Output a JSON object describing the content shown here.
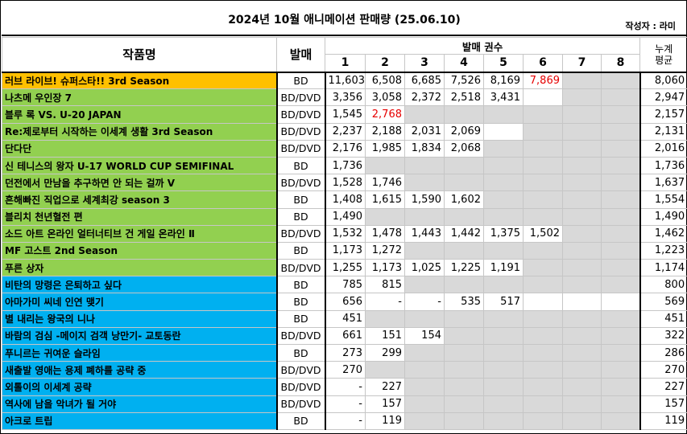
{
  "title": "2024년 10월 애니메이션 판매량 (25.06.10)",
  "author": "작성자 : 라미",
  "headers": {
    "title_col": "작품명",
    "type_col": "발매",
    "volumes_group": "발매 권수",
    "volumes": [
      "1",
      "2",
      "3",
      "4",
      "5",
      "6",
      "7",
      "8"
    ],
    "avg_col_line1": "누계",
    "avg_col_line2": "평균"
  },
  "group_colors": {
    "orange": "#ffc000",
    "green": "#92d050",
    "blue": "#00b0f0",
    "empty": "#d9d9d9",
    "highlight": "#e60000"
  },
  "rows": [
    {
      "name": "러브 라이브! 슈퍼스타!! 3rd Season",
      "type": "BD",
      "group": "orange",
      "vols": [
        "11,603",
        "6,508",
        "6,685",
        "7,526",
        "8,169",
        "7,869",
        "",
        ""
      ],
      "filled": 6,
      "red": [
        5
      ],
      "avg": "8,060"
    },
    {
      "name": "나츠메 우인장 7",
      "type": "BD/DVD",
      "group": "green",
      "vols": [
        "3,356",
        "3,058",
        "2,372",
        "2,518",
        "3,431",
        "",
        "",
        ""
      ],
      "filled": 6,
      "red": [],
      "avg": "2,947"
    },
    {
      "name": "블루 록 VS. U-20 JAPAN",
      "type": "BD/DVD",
      "group": "green",
      "vols": [
        "1,545",
        "2,768",
        "",
        "",
        "",
        "",
        "",
        ""
      ],
      "filled": 2,
      "red": [
        1
      ],
      "avg": "2,157"
    },
    {
      "name": "Re:제로부터 시작하는 이세계 생활 3rd Season",
      "type": "BD/DVD",
      "group": "green",
      "vols": [
        "2,237",
        "2,188",
        "2,031",
        "2,069",
        "",
        "",
        "",
        ""
      ],
      "filled": 5,
      "red": [],
      "avg": "2,131"
    },
    {
      "name": "단다단",
      "type": "BD/DVD",
      "group": "green",
      "vols": [
        "2,176",
        "1,985",
        "1,834",
        "2,068",
        "",
        "",
        "",
        ""
      ],
      "filled": 4,
      "red": [],
      "avg": "2,016"
    },
    {
      "name": "신 테니스의 왕자 U-17 WORLD CUP SEMIFINAL",
      "type": "BD",
      "group": "green",
      "vols": [
        "1,736",
        "",
        "",
        "",
        "",
        "",
        "",
        ""
      ],
      "filled": 1,
      "red": [],
      "avg": "1,736"
    },
    {
      "name": "던전에서 만남을 추구하면 안 되는 걸까 V",
      "type": "BD/DVD",
      "group": "green",
      "vols": [
        "1,528",
        "1,746",
        "",
        "",
        "",
        "",
        "",
        ""
      ],
      "filled": 2,
      "red": [],
      "avg": "1,637"
    },
    {
      "name": "흔해빠진 직업으로 세계최강 season 3",
      "type": "BD",
      "group": "green",
      "vols": [
        "1,408",
        "1,615",
        "1,590",
        "1,602",
        "",
        "",
        "",
        ""
      ],
      "filled": 4,
      "red": [],
      "avg": "1,554"
    },
    {
      "name": "블리치 천년혈전 편",
      "type": "BD",
      "group": "green",
      "vols": [
        "1,490",
        "",
        "",
        "",
        "",
        "",
        "",
        ""
      ],
      "filled": 1,
      "red": [],
      "avg": "1,490"
    },
    {
      "name": "소드 아트 온라인 얼터너티브 건 게일 온라인 Ⅱ",
      "type": "BD/DVD",
      "group": "green",
      "vols": [
        "1,532",
        "1,478",
        "1,443",
        "1,442",
        "1,375",
        "1,502",
        "",
        ""
      ],
      "filled": 6,
      "red": [],
      "avg": "1,462"
    },
    {
      "name": "MF 고스트 2nd Season",
      "type": "BD",
      "group": "green",
      "vols": [
        "1,173",
        "1,272",
        "",
        "",
        "",
        "",
        "",
        ""
      ],
      "filled": 2,
      "red": [],
      "avg": "1,223"
    },
    {
      "name": "푸른 상자",
      "type": "BD/DVD",
      "group": "green",
      "vols": [
        "1,255",
        "1,173",
        "1,025",
        "1,225",
        "1,191",
        "",
        "",
        ""
      ],
      "filled": 5,
      "red": [],
      "avg": "1,174"
    },
    {
      "name": "비탄의 망령은 은퇴하고 싶다",
      "type": "BD",
      "group": "blue",
      "vols": [
        "785",
        "815",
        "",
        "",
        "",
        "",
        "",
        ""
      ],
      "filled": 2,
      "red": [],
      "avg": "800"
    },
    {
      "name": "아마가미 씨네 인연 맺기",
      "type": "BD",
      "group": "blue",
      "vols": [
        "656",
        "-",
        "-",
        "535",
        "517",
        "",
        "",
        ""
      ],
      "filled": 8,
      "red": [],
      "avg": "569"
    },
    {
      "name": "별 내리는 왕국의 니나",
      "type": "BD",
      "group": "blue",
      "vols": [
        "451",
        "",
        "",
        "",
        "",
        "",
        "",
        ""
      ],
      "filled": 1,
      "red": [],
      "avg": "451"
    },
    {
      "name": "바람의 검심 -메이지 검객 낭만기- 교토동란",
      "type": "BD/DVD",
      "group": "blue",
      "vols": [
        "661",
        "151",
        "154",
        "",
        "",
        "",
        "",
        ""
      ],
      "filled": 3,
      "red": [],
      "avg": "322"
    },
    {
      "name": "푸니르는 귀여운 슬라임",
      "type": "BD",
      "group": "blue",
      "vols": [
        "273",
        "299",
        "",
        "",
        "",
        "",
        "",
        ""
      ],
      "filled": 2,
      "red": [],
      "avg": "286"
    },
    {
      "name": "새출발 영애는 용제 폐하를 공략 중",
      "type": "BD/DVD",
      "group": "blue",
      "vols": [
        "270",
        "",
        "",
        "",
        "",
        "",
        "",
        ""
      ],
      "filled": 1,
      "red": [],
      "avg": "270"
    },
    {
      "name": "외톨이의 이세계 공략",
      "type": "BD/DVD",
      "group": "blue",
      "vols": [
        "-",
        "227",
        "",
        "",
        "",
        "",
        "",
        ""
      ],
      "filled": 2,
      "red": [],
      "avg": "227"
    },
    {
      "name": "역사에 남을 악녀가 될 거야",
      "type": "BD/DVD",
      "group": "blue",
      "vols": [
        "-",
        "157",
        "",
        "",
        "",
        "",
        "",
        ""
      ],
      "filled": 2,
      "red": [],
      "avg": "157"
    },
    {
      "name": "아크로 트립",
      "type": "BD",
      "group": "blue",
      "vols": [
        "-",
        "119",
        "",
        "",
        "",
        "",
        "",
        ""
      ],
      "filled": 2,
      "red": [],
      "avg": "119"
    }
  ]
}
